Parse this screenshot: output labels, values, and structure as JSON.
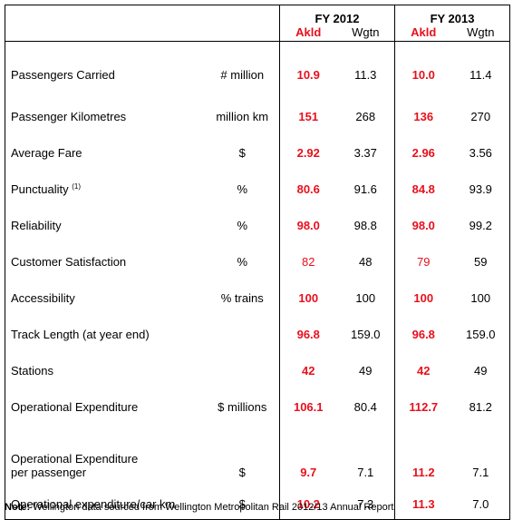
{
  "header": {
    "fy2012": "FY 2012",
    "fy2013": "FY 2013",
    "akld": "Akld",
    "wgtn": "Wgtn"
  },
  "rows": [
    {
      "metric": "Passengers Carried",
      "unit": "# million",
      "akld2012": "10.9",
      "wgtn2012": "11.3",
      "akld2013": "10.0",
      "wgtn2013": "11.4"
    },
    {
      "metric": "Passenger Kilometres",
      "unit": "million km",
      "akld2012": "151",
      "wgtn2012": "268",
      "akld2013": "136",
      "wgtn2013": "270"
    },
    {
      "metric": "Average Fare",
      "unit": "$",
      "akld2012": "2.92",
      "wgtn2012": "3.37",
      "akld2013": "2.96",
      "wgtn2013": "3.56"
    },
    {
      "metric": "Punctuality",
      "sup": "(1)",
      "unit": "%",
      "akld2012": "80.6",
      "wgtn2012": "91.6",
      "akld2013": "84.8",
      "wgtn2013": "93.9"
    },
    {
      "metric": "Reliability",
      "unit": "%",
      "akld2012": "98.0",
      "wgtn2012": "98.8",
      "akld2013": "98.0",
      "wgtn2013": "99.2"
    },
    {
      "metric": "Customer Satisfaction",
      "unit": "%",
      "akld2012": "82",
      "wgtn2012": "48",
      "akld2013": "79",
      "wgtn2013": "59"
    },
    {
      "metric": "Accessibility",
      "unit": "% trains",
      "akld2012": "100",
      "wgtn2012": "100",
      "akld2013": "100",
      "wgtn2013": "100"
    },
    {
      "metric": "Track Length (at year end)",
      "unit": "",
      "akld2012": "96.8",
      "wgtn2012": "159.0",
      "akld2013": "96.8",
      "wgtn2013": "159.0"
    },
    {
      "metric": "Stations",
      "unit": "",
      "akld2012": "42",
      "wgtn2012": "49",
      "akld2013": "42",
      "wgtn2013": "49"
    },
    {
      "metric": "Operational Expenditure",
      "unit": "$ millions",
      "akld2012": "106.1",
      "wgtn2012": "80.4",
      "akld2013": "112.7",
      "wgtn2013": "81.2"
    },
    {
      "metric_line1": "Operational Expenditure",
      "metric_line2": "per passenger",
      "unit": "$",
      "akld2012": "9.7",
      "wgtn2012": "7.1",
      "akld2013": "11.2",
      "wgtn2013": "7.1"
    },
    {
      "metric": "Operational expenditure/car km",
      "unit": "$",
      "akld2012": "10.2",
      "wgtn2012": "7.3",
      "akld2013": "11.3",
      "wgtn2013": "7.0"
    }
  ],
  "note": {
    "label": "Note:",
    "text": " Wellington data sourced from Wellington Metropolitan Rail 2012/13 Annual Report"
  },
  "colors": {
    "auckland": "#e8101c",
    "text": "#000000"
  }
}
